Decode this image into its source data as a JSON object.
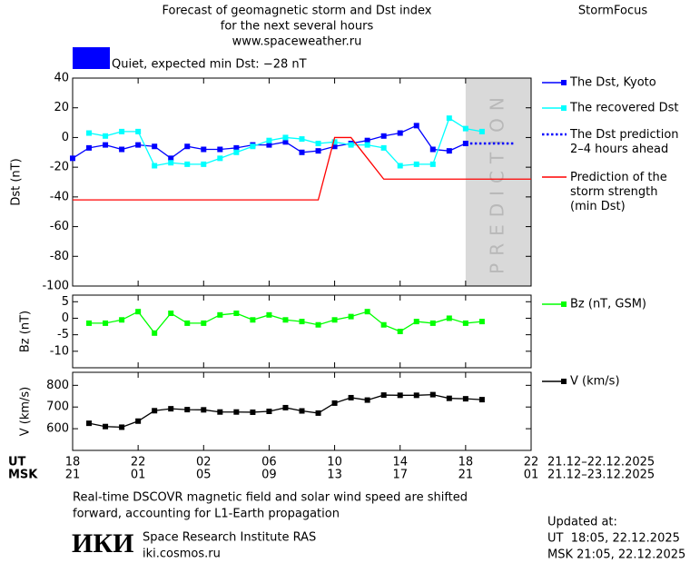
{
  "header": {
    "title_lines": [
      "Forecast of geomagnetic storm and Dst index",
      "for the next several hours",
      "www.spaceweather.ru"
    ],
    "brand": "StormFocus",
    "status_text": "Quiet, expected min Dst: −28 nT",
    "status_color": "#0000ff"
  },
  "chart_data": [
    {
      "type": "line",
      "y_label": "Dst (nT)",
      "ylim": [
        -100,
        40
      ],
      "yticks": [
        40,
        20,
        0,
        -20,
        -40,
        -60,
        -80,
        -100
      ],
      "prediction_label": "PREDICTION",
      "series": [
        {
          "name": "The Dst, Kyoto",
          "color": "#0000ff",
          "marker": "square",
          "values": [
            -14,
            -7,
            -5,
            -8,
            -5,
            -6,
            -14,
            -6,
            -8,
            -8,
            -7,
            -5,
            -5,
            -3,
            -10,
            -9,
            -6,
            -4,
            -2,
            1,
            3,
            8,
            -8,
            -9,
            -4,
            null,
            null,
            null,
            null
          ]
        },
        {
          "name": "The recovered Dst",
          "color": "#00ffff",
          "marker": "square",
          "values": [
            null,
            3,
            1,
            4,
            4,
            -19,
            -17,
            -18,
            -18,
            -14,
            -10,
            -6,
            -2,
            0,
            -1,
            -4,
            -3,
            -5,
            -5,
            -7,
            -19,
            -18,
            -18,
            13,
            6,
            4,
            null,
            null,
            null
          ]
        },
        {
          "name": "The Dst prediction\n2–4 hours ahead",
          "color": "#0000ff",
          "dotted": true,
          "values": [
            null,
            null,
            null,
            null,
            null,
            null,
            null,
            null,
            null,
            null,
            null,
            null,
            null,
            null,
            null,
            null,
            null,
            null,
            null,
            null,
            null,
            null,
            null,
            null,
            -4,
            -4,
            -4,
            -4,
            null
          ]
        },
        {
          "name": "Prediction of the\nstorm strength\n(min Dst)",
          "color": "#ff0000",
          "values": [
            -42,
            -42,
            -42,
            -42,
            -42,
            -42,
            -42,
            -42,
            -42,
            -42,
            -42,
            -42,
            -42,
            -42,
            -42,
            -42,
            0,
            0,
            -14,
            -28,
            -28,
            -28,
            -28,
            -28,
            -28,
            -28,
            -28,
            -28,
            -28
          ]
        }
      ]
    },
    {
      "type": "line",
      "y_label": "Bz (nT)",
      "ylim": [
        -15,
        7
      ],
      "yticks": [
        5,
        0,
        -5,
        -10
      ],
      "series": [
        {
          "name": "Bz (nT, GSM)",
          "color": "#00ff00",
          "marker": "square",
          "values": [
            null,
            -1.5,
            -1.5,
            -0.5,
            2,
            -4.5,
            1.5,
            -1.5,
            -1.5,
            1,
            1.5,
            -0.5,
            1,
            -0.5,
            -1,
            -2,
            -0.5,
            0.5,
            2,
            -2,
            -4,
            -1,
            -1.5,
            0,
            -1.5,
            -1,
            null,
            null,
            null
          ]
        }
      ]
    },
    {
      "type": "line",
      "y_label": "V (km/s)",
      "ylim": [
        500,
        860
      ],
      "yticks": [
        800,
        700,
        600
      ],
      "ut_label": "UT",
      "msk_label": "MSK",
      "categories": [
        "18",
        null,
        null,
        null,
        "22",
        null,
        null,
        null,
        "02",
        null,
        null,
        null,
        "06",
        null,
        null,
        null,
        "10",
        null,
        null,
        null,
        "14",
        null,
        null,
        null,
        "18",
        null,
        null,
        null,
        "22"
      ],
      "categories_msk": [
        "21",
        null,
        null,
        null,
        "01",
        null,
        null,
        null,
        "05",
        null,
        null,
        null,
        "09",
        null,
        null,
        null,
        "13",
        null,
        null,
        null,
        "17",
        null,
        null,
        null,
        "21",
        null,
        null,
        null,
        "01"
      ],
      "ut_range": "21.12–22.12.2025",
      "msk_range": "21.12–23.12.2025",
      "series": [
        {
          "name": "V (km/s)",
          "color": "#000000",
          "marker": "square",
          "values": [
            null,
            625,
            610,
            607,
            635,
            683,
            692,
            688,
            687,
            677,
            677,
            676,
            680,
            697,
            682,
            672,
            718,
            743,
            732,
            755,
            754,
            754,
            757,
            740,
            738,
            734,
            null,
            null,
            null
          ]
        }
      ]
    }
  ],
  "footer": {
    "note_lines": [
      "Real-time DSCOVR magnetic field and solar wind speed are shifted",
      "forward, accounting for L1-Earth propagation"
    ],
    "logo": "ИКИ",
    "institute": "Space Research Institute RAS",
    "site": "iki.cosmos.ru",
    "updated_title": "Updated at:",
    "updated_ut": "UT  18:05, 22.12.2025",
    "updated_msk": "MSK 21:05, 22.12.2025"
  }
}
